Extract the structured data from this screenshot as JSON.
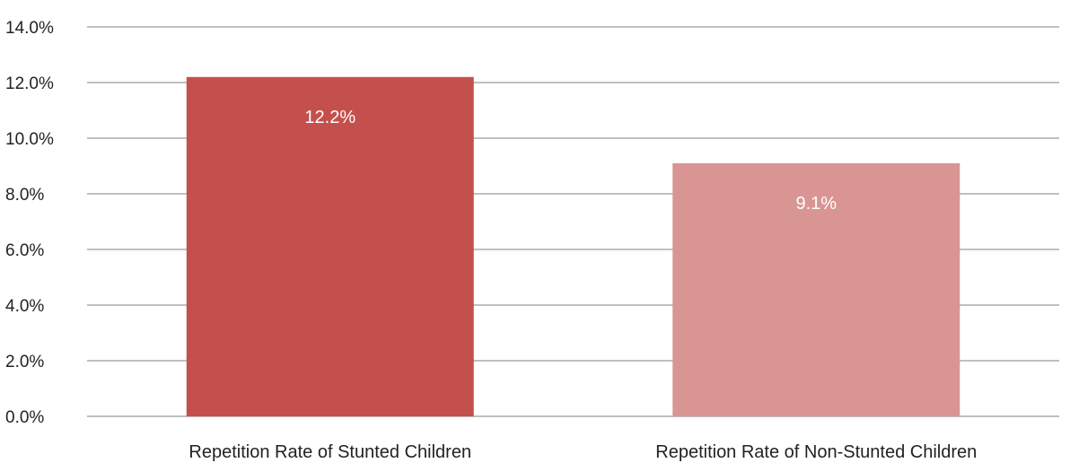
{
  "chart_data": {
    "type": "bar",
    "categories": [
      "Repetition Rate of Stunted Children",
      "Repetition Rate of Non-Stunted Children"
    ],
    "values": [
      12.2,
      9.1
    ],
    "value_labels": [
      "12.2%",
      "9.1%"
    ],
    "bar_colors": [
      "#c4504d",
      "#d99593"
    ],
    "ylim": [
      0,
      14
    ],
    "yticks": [
      0,
      2,
      4,
      6,
      8,
      10,
      12,
      14
    ],
    "ytick_labels": [
      "0.0%",
      "2.0%",
      "4.0%",
      "6.0%",
      "8.0%",
      "10.0%",
      "12.0%",
      "14.0%"
    ],
    "grid": true,
    "legend": "none",
    "title": "",
    "xlabel": "",
    "ylabel": ""
  }
}
